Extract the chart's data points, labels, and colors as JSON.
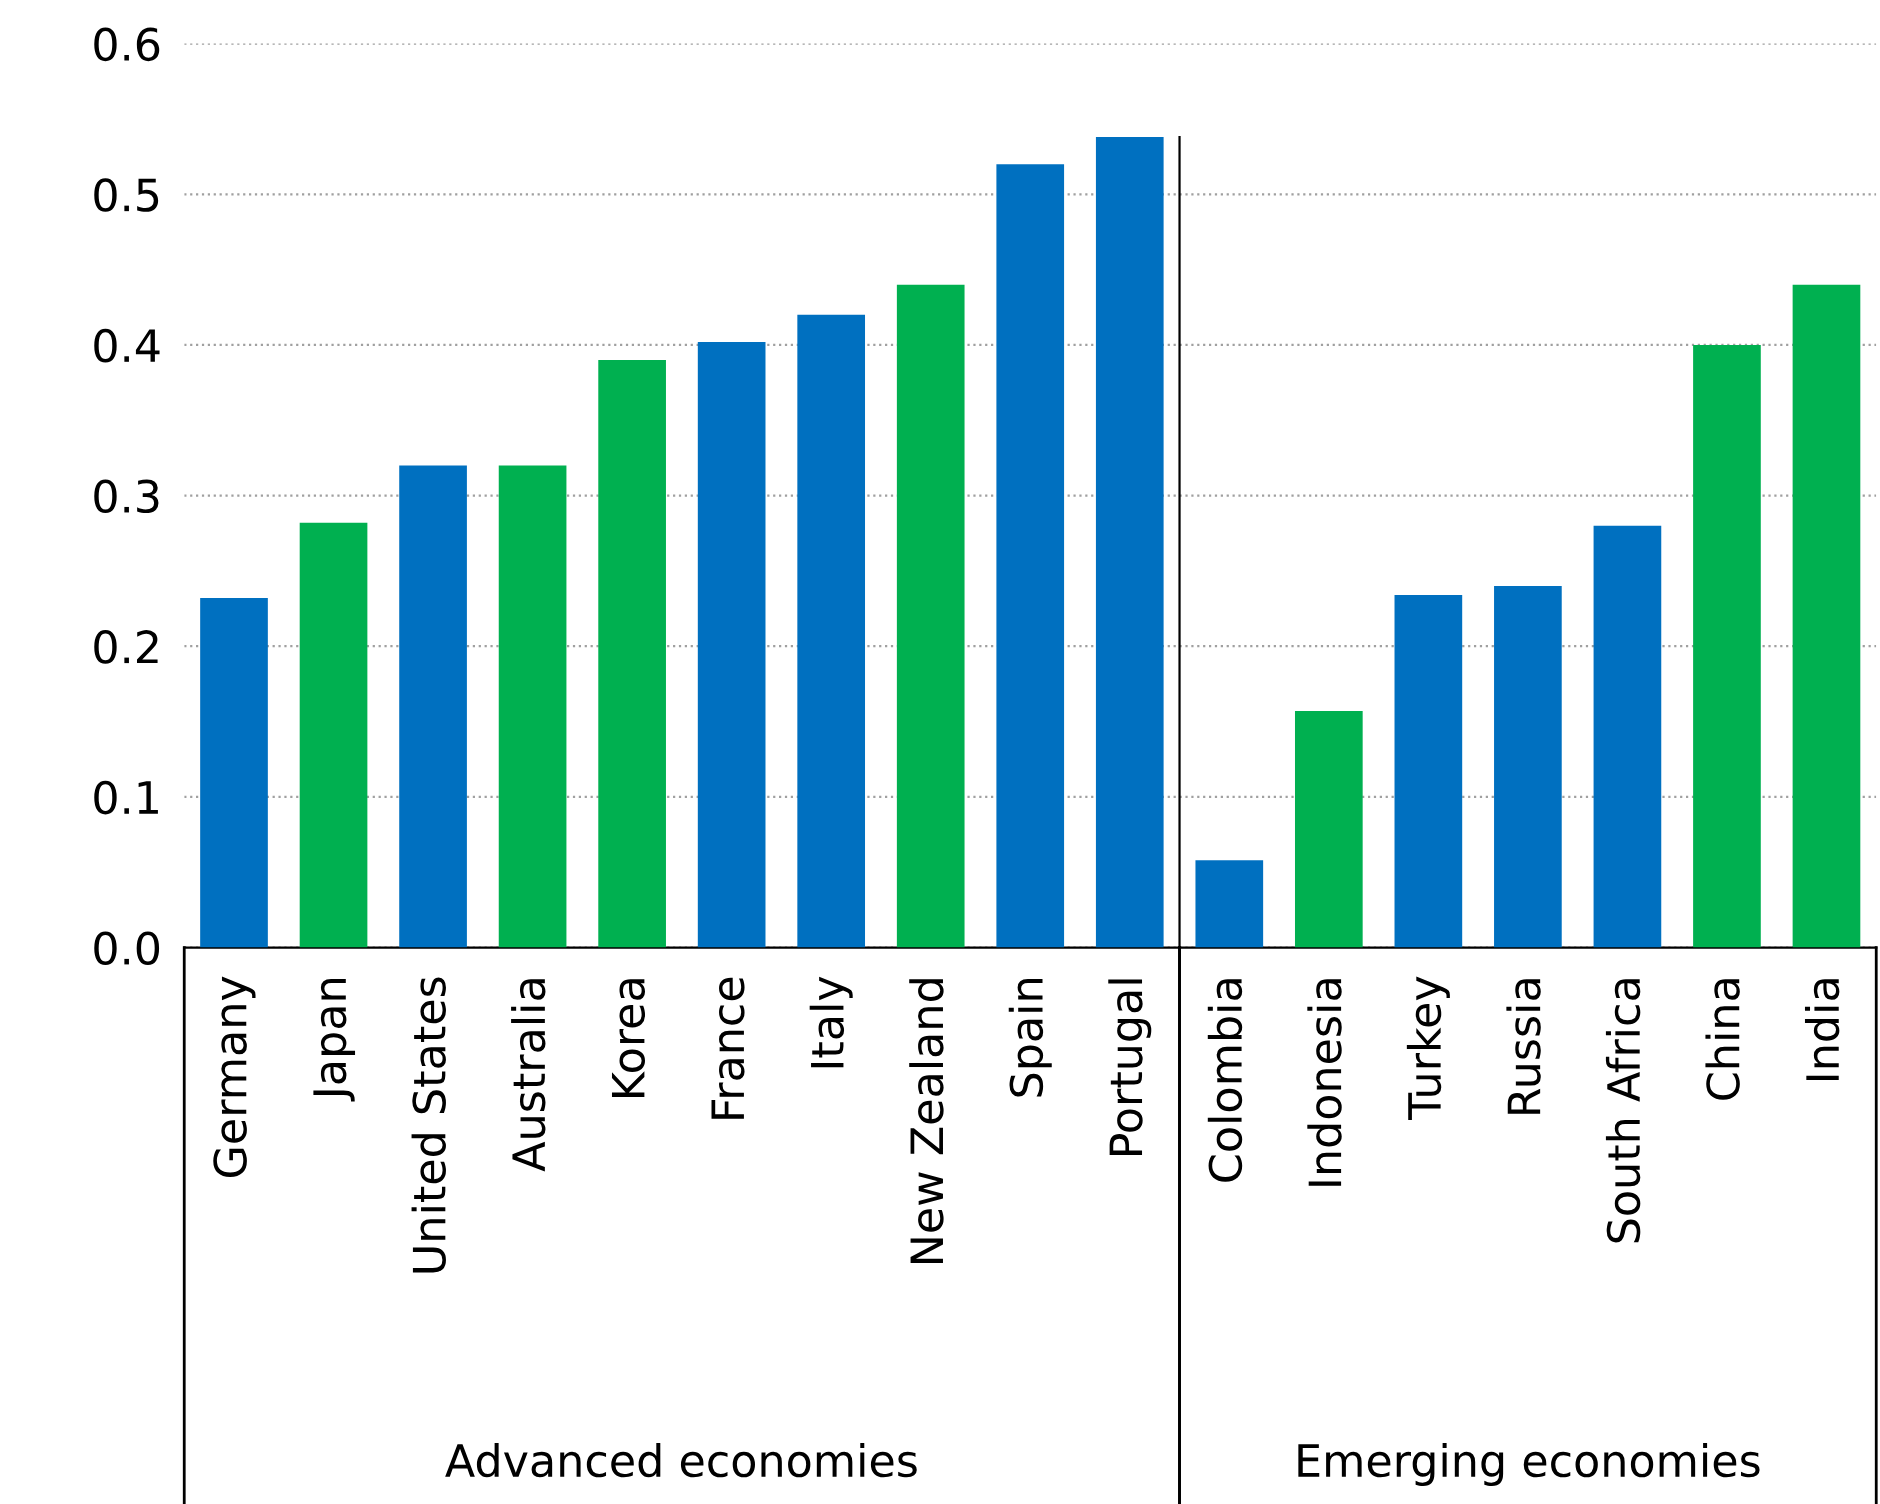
{
  "chart_data": [
    {
      "type": "bar",
      "categories": [
        "Germany",
        "Japan",
        "United States",
        "Australia",
        "Korea",
        "France",
        "Italy",
        "New Zealand",
        "Spain",
        "Portugal"
      ],
      "values": [
        0.232,
        0.282,
        0.32,
        0.32,
        0.39,
        0.402,
        0.42,
        0.44,
        0.52,
        0.538
      ],
      "colors": [
        "#0070c0",
        "#00b050",
        "#0070c0",
        "#00b050",
        "#00b050",
        "#0070c0",
        "#0070c0",
        "#00b050",
        "#0070c0",
        "#0070c0"
      ],
      "xlabel": "Advanced economies",
      "ylim": [
        0,
        0.6
      ],
      "yticks": [
        {
          "value": 0,
          "label": "0.0"
        },
        0.1,
        0.2,
        0.3,
        0.4,
        0.5,
        0.6
      ],
      "grid": "y"
    },
    {
      "type": "bar",
      "categories": [
        "Colombia",
        "Indonesia",
        "Turkey",
        "Russia",
        "South Africa",
        "China",
        "India"
      ],
      "values": [
        0.058,
        0.157,
        0.234,
        0.24,
        0.28,
        0.4,
        0.44
      ],
      "colors": [
        "#0070c0",
        "#00b050",
        "#0070c0",
        "#0070c0",
        "#0070c0",
        "#00b050",
        "#00b050"
      ],
      "xlabel": "Emerging economies",
      "ylim": [
        0,
        0.6
      ],
      "yticks": [
        0,
        0.1,
        0.2,
        0.3,
        0.4,
        0.5,
        0.6
      ],
      "grid": "y",
      "tick_labels": "x"
    }
  ]
}
